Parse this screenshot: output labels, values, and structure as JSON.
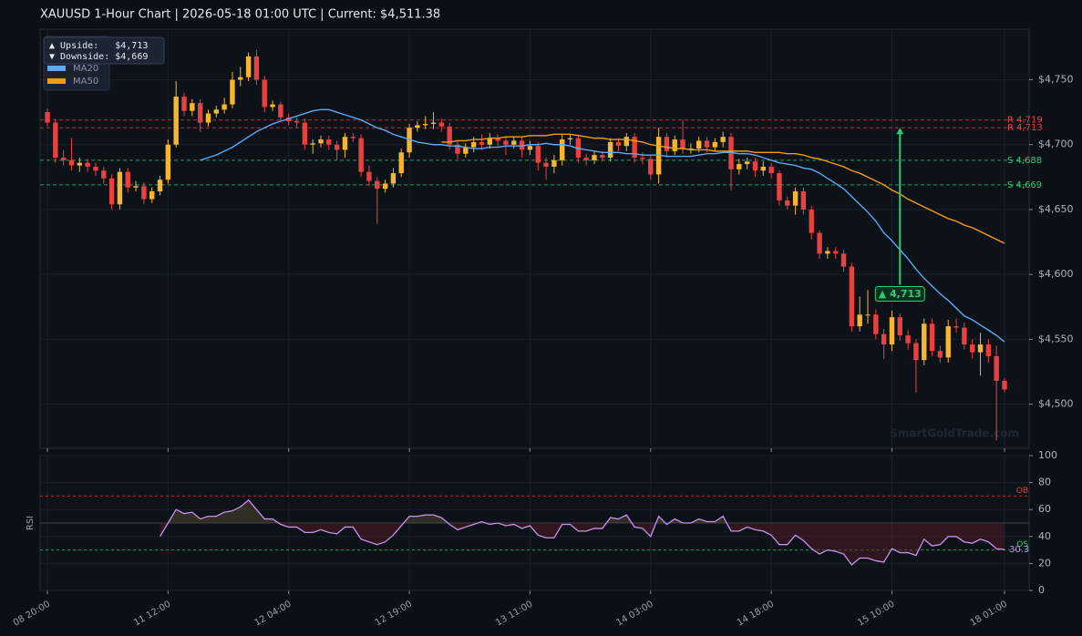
{
  "chart_data": [
    {
      "type": "candlestick",
      "title": "XAUUSD  1-Hour Chart  |  2026-05-18 01:00 UTC  |  Current: $4,511.38",
      "open": [
        4725,
        4717,
        4690,
        4688,
        4684,
        4686,
        4683,
        4680,
        4674,
        4654,
        4679,
        4667,
        4668,
        4658,
        4664,
        4673,
        4700,
        4737,
        4726,
        4732,
        4717,
        4724,
        4727,
        4731,
        4750,
        4752,
        4768,
        4750,
        4729,
        4731,
        4721,
        4718,
        4717,
        4700,
        4701,
        4704,
        4700,
        4696,
        4706,
        4705,
        4679,
        4672,
        4666,
        4670,
        4678,
        4694,
        4713,
        4715,
        4716,
        4717,
        4714,
        4700,
        4693,
        4698,
        4702,
        4700,
        4705,
        4703,
        4700,
        4703,
        4696,
        4699,
        4686,
        4683,
        4688,
        4704,
        4705,
        4690,
        4688,
        4692,
        4690,
        4702,
        4699,
        4706,
        4690,
        4689,
        4677,
        4706,
        4695,
        4704,
        4697,
        4697,
        4703,
        4698,
        4702,
        4706,
        4681,
        4685,
        4687,
        4680,
        4683,
        4678,
        4657,
        4653,
        4664,
        4650,
        4632,
        4616,
        4618,
        4616,
        4606,
        4560,
        4569,
        4569,
        4554,
        4546,
        4567,
        4553,
        4547,
        4534,
        4562,
        4541,
        4536,
        4560,
        4559,
        4546,
        4540,
        4546,
        4537,
        4518
      ],
      "high": [
        4728,
        4720,
        4696,
        4705,
        4690,
        4689,
        4686,
        4683,
        4677,
        4682,
        4682,
        4672,
        4671,
        4667,
        4676,
        4704,
        4749,
        4740,
        4735,
        4735,
        4727,
        4730,
        4736,
        4756,
        4760,
        4771,
        4773,
        4753,
        4734,
        4733,
        4724,
        4721,
        4720,
        4704,
        4707,
        4707,
        4703,
        4709,
        4709,
        4708,
        4684,
        4675,
        4673,
        4682,
        4697,
        4716,
        4718,
        4722,
        4725,
        4720,
        4717,
        4703,
        4701,
        4706,
        4708,
        4709,
        4708,
        4706,
        4706,
        4706,
        4703,
        4702,
        4690,
        4692,
        4708,
        4708,
        4708,
        4693,
        4695,
        4695,
        4705,
        4705,
        4709,
        4709,
        4694,
        4692,
        4713,
        4709,
        4707,
        4719,
        4701,
        4706,
        4706,
        4705,
        4710,
        4709,
        4689,
        4690,
        4690,
        4687,
        4686,
        4680,
        4660,
        4667,
        4667,
        4653,
        4634,
        4621,
        4621,
        4619,
        4609,
        4583,
        4588,
        4573,
        4558,
        4572,
        4570,
        4557,
        4550,
        4566,
        4566,
        4545,
        4565,
        4566,
        4563,
        4550,
        4555,
        4550,
        4545,
        4520
      ],
      "low": [
        4714,
        4686,
        4684,
        4680,
        4679,
        4679,
        4676,
        4670,
        4650,
        4650,
        4663,
        4664,
        4654,
        4655,
        4661,
        4670,
        4698,
        4722,
        4722,
        4710,
        4714,
        4721,
        4724,
        4728,
        4745,
        4749,
        4746,
        4725,
        4726,
        4718,
        4715,
        4713,
        4696,
        4693,
        4698,
        4696,
        4688,
        4690,
        4702,
        4675,
        4668,
        4639,
        4663,
        4667,
        4675,
        4690,
        4710,
        4712,
        4712,
        4710,
        4696,
        4689,
        4690,
        4694,
        4696,
        4697,
        4699,
        4692,
        4697,
        4690,
        4692,
        4680,
        4673,
        4678,
        4684,
        4700,
        4686,
        4684,
        4685,
        4687,
        4687,
        4695,
        4695,
        4686,
        4685,
        4673,
        4670,
        4690,
        4692,
        4693,
        4693,
        4694,
        4694,
        4695,
        4698,
        4665,
        4677,
        4681,
        4675,
        4676,
        4674,
        4653,
        4650,
        4646,
        4646,
        4627,
        4612,
        4612,
        4612,
        4602,
        4556,
        4556,
        4562,
        4550,
        4535,
        4541,
        4549,
        4542,
        4509,
        4530,
        4537,
        4532,
        4532,
        4555,
        4542,
        4535,
        4522,
        4532,
        4472,
        4509
      ],
      "close": [
        4717,
        4690,
        4688,
        4684,
        4686,
        4683,
        4680,
        4674,
        4654,
        4679,
        4667,
        4668,
        4658,
        4664,
        4673,
        4700,
        4737,
        4726,
        4732,
        4717,
        4724,
        4727,
        4731,
        4750,
        4752,
        4768,
        4750,
        4729,
        4731,
        4721,
        4718,
        4717,
        4700,
        4701,
        4704,
        4700,
        4696,
        4706,
        4705,
        4679,
        4672,
        4666,
        4670,
        4678,
        4694,
        4713,
        4715,
        4716,
        4717,
        4714,
        4700,
        4693,
        4698,
        4702,
        4700,
        4705,
        4703,
        4700,
        4703,
        4696,
        4699,
        4686,
        4683,
        4688,
        4704,
        4705,
        4690,
        4688,
        4692,
        4690,
        4702,
        4699,
        4706,
        4690,
        4689,
        4677,
        4706,
        4695,
        4704,
        4697,
        4697,
        4703,
        4698,
        4702,
        4706,
        4681,
        4685,
        4687,
        4680,
        4683,
        4678,
        4657,
        4653,
        4664,
        4650,
        4632,
        4616,
        4618,
        4616,
        4606,
        4560,
        4569,
        4569,
        4554,
        4546,
        4567,
        4553,
        4547,
        4534,
        4562,
        4541,
        4536,
        4560,
        4559,
        4546,
        4540,
        4546,
        4537,
        4518,
        4511.38
      ],
      "up_color": "#f5b731",
      "down_color": "#e84142",
      "series": [
        {
          "name": "MA20",
          "color": "#5ea8f2",
          "values": [
            null,
            null,
            null,
            null,
            null,
            null,
            null,
            null,
            null,
            null,
            null,
            null,
            null,
            null,
            null,
            null,
            null,
            null,
            null,
            4688,
            4690,
            4692,
            4695,
            4698,
            4702,
            4706,
            4710,
            4713,
            4716,
            4718,
            4720,
            4722,
            4724,
            4726,
            4727,
            4727,
            4725,
            4723,
            4721,
            4719,
            4716,
            4713,
            4711,
            4708,
            4706,
            4704,
            4702,
            4701,
            4700,
            4700,
            4699,
            4699,
            4698,
            4697,
            4697,
            4698,
            4698,
            4699,
            4699,
            4699,
            4700,
            4700,
            4701,
            4700,
            4700,
            4699,
            4697,
            4696,
            4695,
            4694,
            4694,
            4694,
            4693,
            4693,
            4692,
            4692,
            4692,
            4691,
            4691,
            4691,
            4691,
            4692,
            4693,
            4693,
            4694,
            4694,
            4693,
            4693,
            4692,
            4690,
            4688,
            4686,
            4685,
            4684,
            4682,
            4681,
            4678,
            4674,
            4670,
            4666,
            4660,
            4654,
            4648,
            4641,
            4632,
            4626,
            4619,
            4612,
            4604,
            4597,
            4591,
            4585,
            4580,
            4574,
            4568,
            4565,
            4561,
            4557,
            4553,
            4548
          ]
        },
        {
          "name": "MA50",
          "color": "#f39c12",
          "values": [
            null,
            null,
            null,
            null,
            null,
            null,
            null,
            null,
            null,
            null,
            null,
            null,
            null,
            null,
            null,
            null,
            null,
            null,
            null,
            null,
            null,
            null,
            null,
            null,
            null,
            null,
            null,
            null,
            null,
            null,
            null,
            null,
            null,
            null,
            null,
            null,
            null,
            null,
            null,
            null,
            null,
            null,
            null,
            null,
            null,
            null,
            null,
            null,
            null,
            4702,
            4702,
            4703,
            4703,
            4704,
            4704,
            4705,
            4705,
            4706,
            4706,
            4706,
            4707,
            4707,
            4707,
            4708,
            4708,
            4708,
            4707,
            4706,
            4705,
            4705,
            4704,
            4704,
            4704,
            4703,
            4702,
            4700,
            4699,
            4698,
            4697,
            4697,
            4696,
            4696,
            4696,
            4695,
            4695,
            4695,
            4695,
            4695,
            4694,
            4694,
            4694,
            4694,
            4693,
            4693,
            4692,
            4690,
            4689,
            4687,
            4685,
            4683,
            4680,
            4678,
            4675,
            4672,
            4669,
            4665,
            4662,
            4658,
            4655,
            4652,
            4649,
            4646,
            4643,
            4641,
            4638,
            4636,
            4633,
            4630,
            4627,
            4624
          ]
        }
      ],
      "ylim": [
        4466,
        4789
      ],
      "yticks": [
        {
          "value": 4500,
          "label": "$4,500"
        },
        {
          "value": 4550,
          "label": "$4,550"
        },
        {
          "value": 4600,
          "label": "$4,600"
        },
        {
          "value": 4650,
          "label": "$4,650"
        },
        {
          "value": 4700,
          "label": "$4,700"
        },
        {
          "value": 4750,
          "label": "$4,750"
        }
      ],
      "grid": true,
      "levels": [
        {
          "label": "R 4,719",
          "value": 4719,
          "color": "#e84142"
        },
        {
          "label": "R 4,713",
          "value": 4713,
          "color": "#e84142"
        },
        {
          "label": "S 4,688",
          "value": 4688,
          "color": "#2ecc71"
        },
        {
          "label": "S 4,669",
          "value": 4669,
          "color": "#2ecc71"
        }
      ],
      "target": {
        "label": "▲ 4,713",
        "value": 4713,
        "from": 4592,
        "color": "#2ecc71"
      },
      "info": [
        "▲ Upside:   $4,713",
        "▼ Downside: $4,669"
      ],
      "watermark": "SmartGoldTrade.com"
    },
    {
      "type": "line",
      "ylabel": "RSI",
      "categories": [
        "08 20:00",
        null,
        null,
        null,
        null,
        null,
        null,
        null,
        null,
        null,
        null,
        null,
        null,
        null,
        null,
        "11 12:00",
        null,
        null,
        null,
        null,
        null,
        null,
        null,
        null,
        null,
        null,
        null,
        null,
        null,
        null,
        "12 04:00",
        null,
        null,
        null,
        null,
        null,
        null,
        null,
        null,
        null,
        null,
        null,
        null,
        null,
        null,
        "12 19:00",
        null,
        null,
        null,
        null,
        null,
        null,
        null,
        null,
        null,
        null,
        null,
        null,
        null,
        null,
        "13 11:00",
        null,
        null,
        null,
        null,
        null,
        null,
        null,
        null,
        null,
        null,
        null,
        null,
        null,
        null,
        "14 03:00",
        null,
        null,
        null,
        null,
        null,
        null,
        null,
        null,
        null,
        null,
        null,
        null,
        null,
        null,
        "14 18:00",
        null,
        null,
        null,
        null,
        null,
        null,
        null,
        null,
        null,
        null,
        null,
        null,
        null,
        null,
        "15 10:00",
        null,
        null,
        null,
        null,
        null,
        null,
        null,
        null,
        null,
        null,
        null,
        null,
        null,
        "18 01:00"
      ],
      "color": "#c792ea",
      "values": [
        null,
        null,
        null,
        null,
        null,
        null,
        null,
        null,
        null,
        null,
        null,
        null,
        null,
        null,
        40,
        50,
        60,
        57,
        58,
        53,
        55,
        55,
        58,
        59,
        62,
        67,
        60,
        53,
        53,
        49,
        47,
        47,
        43,
        43,
        45,
        43,
        42,
        47,
        47,
        38,
        36,
        34,
        36,
        41,
        48,
        55,
        55,
        56,
        56,
        54,
        49,
        45,
        47,
        49,
        51,
        49,
        50,
        48,
        49,
        46,
        48,
        41,
        39,
        39,
        49,
        49,
        44,
        44,
        46,
        46,
        54,
        53,
        56,
        47,
        46,
        40,
        55,
        49,
        53,
        50,
        50,
        53,
        51,
        51,
        55,
        44,
        44,
        47,
        45,
        44,
        41,
        34,
        34,
        41,
        37,
        31,
        27,
        30,
        29,
        27,
        19,
        24,
        24,
        22,
        21,
        31,
        28,
        28,
        26,
        38,
        33,
        34,
        40,
        40,
        36,
        35,
        38,
        36,
        31,
        30.3
      ],
      "ylim": [
        0,
        100
      ],
      "yticks": [
        0,
        20,
        40,
        60,
        80,
        100
      ],
      "grid": true,
      "midline": 50,
      "levels": [
        {
          "label": "OB",
          "value": 70,
          "color": "#e84142"
        },
        {
          "label": "OS",
          "value": 30,
          "color": "#2ecc71"
        }
      ]
    }
  ]
}
